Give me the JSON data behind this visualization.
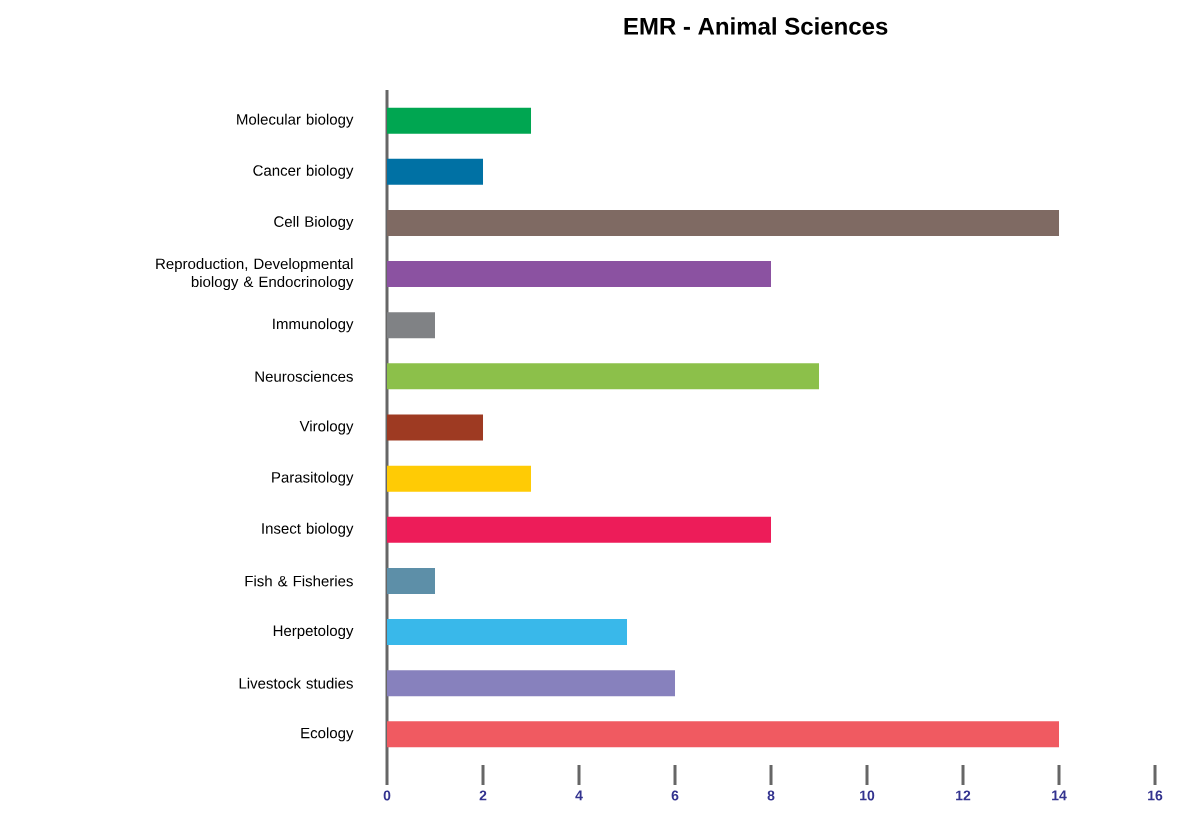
{
  "chart_data": {
    "type": "bar",
    "orientation": "horizontal",
    "title": "EMR - Animal Sciences",
    "categories": [
      "Molecular biology",
      "Cancer biology",
      "Cell Biology",
      "Reproduction, Developmental biology & Endocrinology",
      "Immunology",
      "Neurosciences",
      "Virology",
      "Parasitology",
      "Insect biology",
      "Fish & Fisheries",
      "Herpetology",
      "Livestock studies",
      "Ecology"
    ],
    "values": [
      3,
      2,
      14,
      8,
      1,
      9,
      2,
      3,
      8,
      1,
      5,
      6,
      14
    ],
    "colors": [
      "#00a651",
      "#0071a4",
      "#7f6a63",
      "#8b52a1",
      "#808285",
      "#8cc04a",
      "#9e3a22",
      "#ffcb05",
      "#ed1c59",
      "#5d8fa8",
      "#39b8ea",
      "#8781bd",
      "#f05a61"
    ],
    "xlim": [
      0,
      16
    ],
    "xticks": [
      0,
      2,
      4,
      6,
      8,
      10,
      12,
      14,
      16
    ]
  }
}
